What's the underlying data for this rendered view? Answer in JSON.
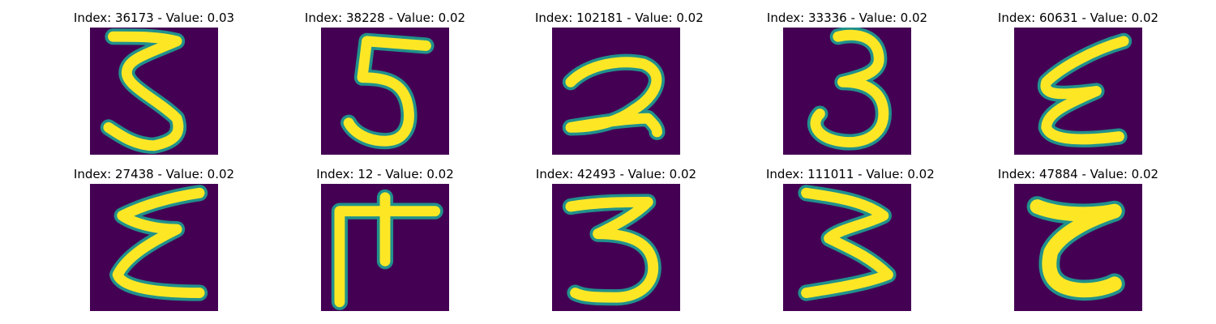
{
  "background_color": "#440154",
  "stroke_edge_color": "#21918c",
  "stroke_core_color": "#fde725",
  "panels": [
    {
      "title": "Index: 36173 - Value: 0.03",
      "glyph": "3"
    },
    {
      "title": "Index: 38228 - Value: 0.02",
      "glyph": "5"
    },
    {
      "title": "Index: 102181 - Value: 0.02",
      "glyph": "2"
    },
    {
      "title": "Index: 33336 - Value: 0.02",
      "glyph": "3"
    },
    {
      "title": "Index: 60631 - Value: 0.02",
      "glyph": "ε"
    },
    {
      "title": "Index: 27438 - Value: 0.02",
      "glyph": "ε"
    },
    {
      "title": "Index: 12 - Value: 0.02",
      "glyph": "F"
    },
    {
      "title": "Index: 42493 - Value: 0.02",
      "glyph": "3"
    },
    {
      "title": "Index: 111011 - Value: 0.02",
      "glyph": "3"
    },
    {
      "title": "Index: 47884 - Value: 0.02",
      "glyph": "ε"
    }
  ]
}
